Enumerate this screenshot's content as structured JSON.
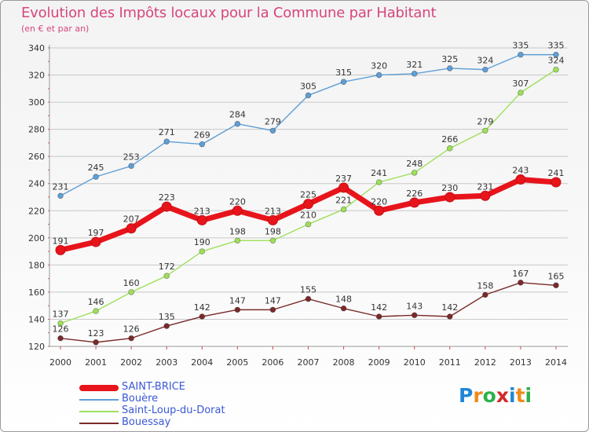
{
  "header": {
    "title": "Evolution des Impôts locaux pour la Commune par Habitant",
    "subtitle": "(en € et par an)"
  },
  "colors": {
    "title": "#d6457e",
    "grid": "#c8c8c8",
    "axis_tick": "#d64a4a"
  },
  "chart_data": {
    "type": "line",
    "title": "Evolution des Impôts locaux pour la Commune par Habitant",
    "subtitle": "(en € et par an)",
    "xlabel": "",
    "ylabel": "",
    "x": [
      2000,
      2001,
      2002,
      2003,
      2004,
      2005,
      2006,
      2007,
      2008,
      2009,
      2010,
      2011,
      2012,
      2013,
      2014
    ],
    "ylim": [
      120,
      340
    ],
    "yticks": [
      120,
      140,
      160,
      180,
      200,
      220,
      240,
      260,
      280,
      300,
      320,
      340
    ],
    "grid": "horizontal",
    "legend_position": "bottom-left",
    "series": [
      {
        "name": "SAINT-BRICE",
        "color": "#e8141b",
        "values": [
          191,
          197,
          207,
          223,
          213,
          220,
          213,
          225,
          237,
          220,
          226,
          230,
          231,
          243,
          241
        ]
      },
      {
        "name": "Bouère",
        "color": "#5f9fd6",
        "values": [
          231,
          245,
          253,
          271,
          269,
          284,
          279,
          305,
          315,
          320,
          321,
          325,
          324,
          335,
          335
        ]
      },
      {
        "name": "Saint-Loup-du-Dorat",
        "color": "#9ee05a",
        "values": [
          137,
          146,
          160,
          172,
          190,
          198,
          198,
          210,
          221,
          241,
          248,
          266,
          279,
          307,
          324
        ]
      },
      {
        "name": "Bouessay",
        "color": "#7a2a2a",
        "values": [
          126,
          123,
          126,
          135,
          142,
          147,
          147,
          155,
          148,
          142,
          143,
          142,
          158,
          167,
          165
        ]
      }
    ]
  },
  "legend": {
    "items": [
      {
        "label": "SAINT-BRICE",
        "color": "#e8141b",
        "text_color": "#3a58d6"
      },
      {
        "label": "Bouère",
        "color": "#5f9fd6",
        "text_color": "#3a58d6"
      },
      {
        "label": "Saint-Loup-du-Dorat",
        "color": "#9ee05a",
        "text_color": "#3a58d6"
      },
      {
        "label": "Bouessay",
        "color": "#7a2a2a",
        "text_color": "#3a58d6"
      }
    ]
  },
  "logo": {
    "text": "Proxiti",
    "letter_colors": [
      "#1f86d8",
      "#ef8a18",
      "#2db14a",
      "#d12a2a",
      "#1f86d8",
      "#ef8a18",
      "#2db14a"
    ]
  }
}
